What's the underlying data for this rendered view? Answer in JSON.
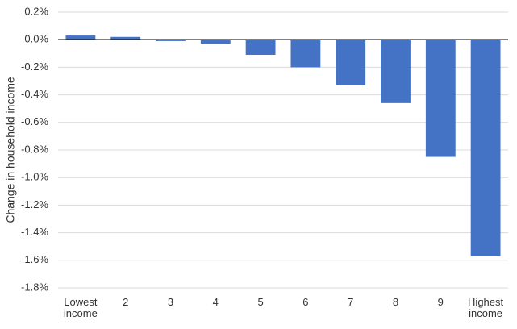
{
  "chart_data": {
    "type": "bar",
    "y_label": "Change in household income",
    "categories": [
      "Lowest income",
      "2",
      "3",
      "4",
      "5",
      "6",
      "7",
      "8",
      "9",
      "Highest income"
    ],
    "values": [
      0.03,
      0.02,
      -0.01,
      -0.03,
      -0.11,
      -0.2,
      -0.33,
      -0.46,
      -0.85,
      -1.57
    ],
    "color": "#4472c4",
    "ylim": [
      -1.8,
      0.2
    ],
    "yticks": [
      {
        "value": 0.2,
        "label": "0.2%"
      },
      {
        "value": 0,
        "label": "0.0%"
      },
      {
        "value": -0.2,
        "label": "-0.2%"
      },
      {
        "value": -0.4,
        "label": "-0.4%"
      },
      {
        "value": -0.6,
        "label": "-0.6%"
      },
      {
        "value": -0.8,
        "label": "-0.8%"
      },
      {
        "value": -1.0,
        "label": "-1.0%"
      },
      {
        "value": -1.2,
        "label": "-1.2%"
      },
      {
        "value": -1.4,
        "label": "-1.4%"
      },
      {
        "value": -1.6,
        "label": "-1.6%"
      },
      {
        "value": -1.8,
        "label": "-1.8%"
      }
    ],
    "grid": true
  }
}
